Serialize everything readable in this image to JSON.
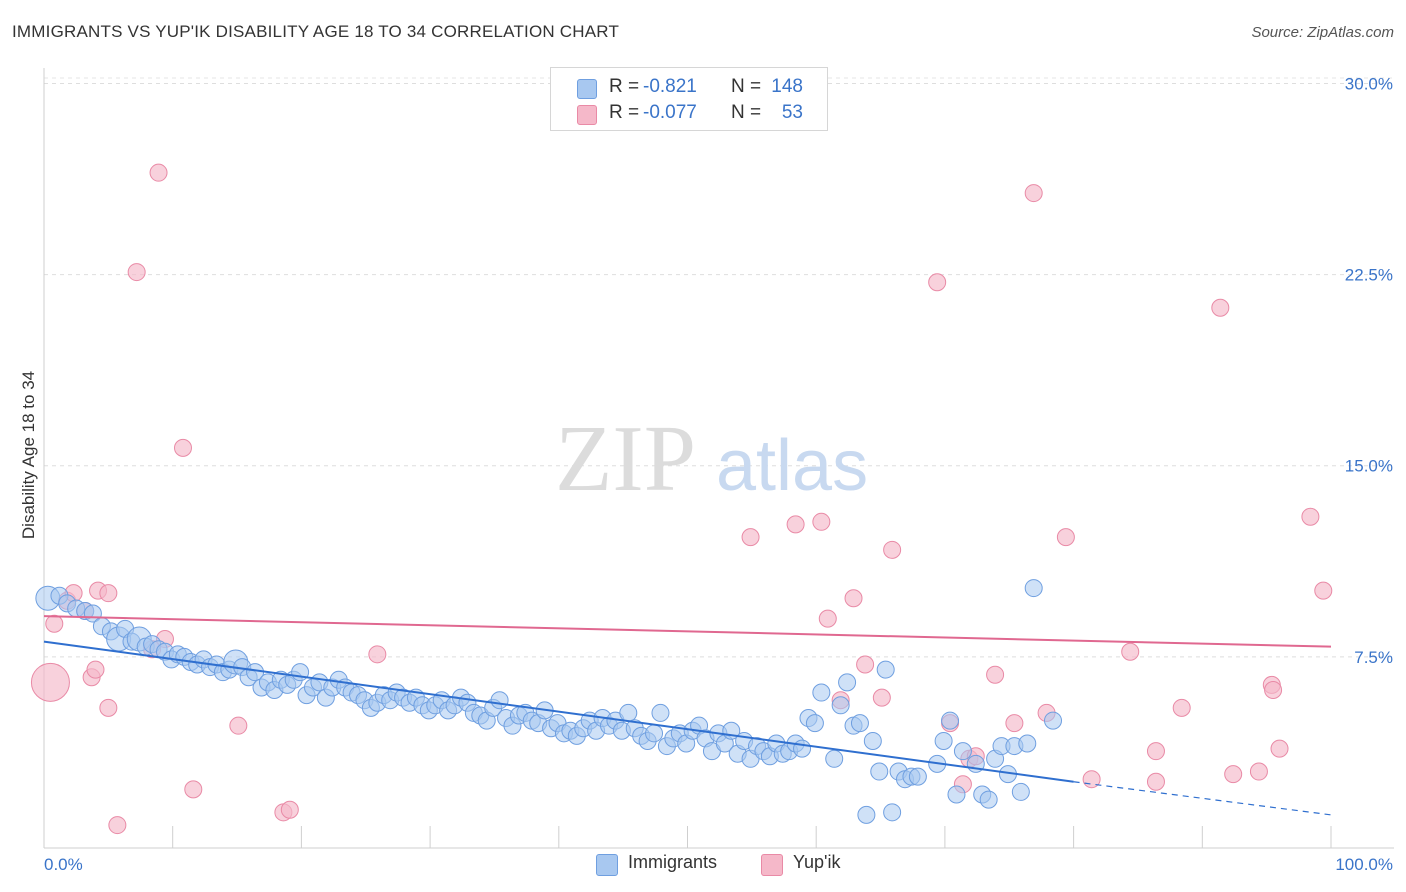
{
  "title": "IMMIGRANTS VS YUP'IK DISABILITY AGE 18 TO 34 CORRELATION CHART",
  "source": "Source: ZipAtlas.com",
  "watermark": {
    "zip": "ZIP",
    "atlas": "atlas"
  },
  "legend_top": [
    {
      "r_label": "R =",
      "r_value": "-0.821",
      "n_label": "N =",
      "n_value": "148",
      "color": "#a8c8f0"
    },
    {
      "r_label": "R =",
      "r_value": "-0.077",
      "n_label": "N =",
      "n_value": "53",
      "color": "#f5b8c9"
    }
  ],
  "legend_bottom": [
    {
      "label": "Immigrants",
      "color": "#a8c8f0"
    },
    {
      "label": "Yup'ik",
      "color": "#f5b8c9"
    }
  ],
  "chart_data": {
    "type": "scatter",
    "title": "IMMIGRANTS VS YUP'IK DISABILITY AGE 18 TO 34 CORRELATION CHART",
    "xlabel": "",
    "ylabel": "Disability Age 18 to 34",
    "xlim": [
      0,
      100
    ],
    "ylim": [
      0,
      31
    ],
    "x_tick_labels": [
      "0.0%",
      "100.0%"
    ],
    "y_ticks": [
      7.5,
      15.0,
      22.5,
      30.0
    ],
    "y_tick_labels": [
      "7.5%",
      "15.0%",
      "22.5%",
      "30.0%"
    ],
    "grid": "horizontal dashed",
    "series": [
      {
        "name": "Immigrants",
        "color": "#6f9fe0",
        "fill": "#a8c8f0",
        "trend": {
          "x0": 0,
          "y0": 8.1,
          "x1": 80,
          "y1": 2.6,
          "dash_to_x": 100,
          "dash_to_y": 1.3,
          "color": "#2f6fcf"
        },
        "points": [
          [
            0.3,
            9.8
          ],
          [
            1.2,
            9.9
          ],
          [
            1.8,
            9.6
          ],
          [
            2.5,
            9.4
          ],
          [
            3.2,
            9.3
          ],
          [
            3.8,
            9.2
          ],
          [
            4.5,
            8.7
          ],
          [
            5.2,
            8.5
          ],
          [
            5.8,
            8.2
          ],
          [
            6.3,
            8.6
          ],
          [
            6.8,
            8.1
          ],
          [
            7.4,
            8.2
          ],
          [
            7.9,
            7.9
          ],
          [
            8.4,
            8.0
          ],
          [
            8.9,
            7.8
          ],
          [
            9.4,
            7.7
          ],
          [
            9.9,
            7.4
          ],
          [
            10.4,
            7.6
          ],
          [
            10.9,
            7.5
          ],
          [
            11.4,
            7.3
          ],
          [
            11.9,
            7.2
          ],
          [
            12.4,
            7.4
          ],
          [
            12.9,
            7.1
          ],
          [
            13.4,
            7.2
          ],
          [
            13.9,
            6.9
          ],
          [
            14.4,
            7.0
          ],
          [
            14.9,
            7.3
          ],
          [
            15.4,
            7.1
          ],
          [
            15.9,
            6.7
          ],
          [
            16.4,
            6.9
          ],
          [
            16.9,
            6.3
          ],
          [
            17.4,
            6.5
          ],
          [
            17.9,
            6.2
          ],
          [
            18.4,
            6.6
          ],
          [
            18.9,
            6.4
          ],
          [
            19.4,
            6.6
          ],
          [
            19.9,
            6.9
          ],
          [
            20.4,
            6.0
          ],
          [
            20.9,
            6.3
          ],
          [
            21.4,
            6.5
          ],
          [
            21.9,
            5.9
          ],
          [
            22.4,
            6.3
          ],
          [
            22.9,
            6.6
          ],
          [
            23.4,
            6.3
          ],
          [
            23.9,
            6.1
          ],
          [
            24.4,
            6.0
          ],
          [
            24.9,
            5.8
          ],
          [
            25.4,
            5.5
          ],
          [
            25.9,
            5.7
          ],
          [
            26.4,
            6.0
          ],
          [
            26.9,
            5.8
          ],
          [
            27.4,
            6.1
          ],
          [
            27.9,
            5.9
          ],
          [
            28.4,
            5.7
          ],
          [
            28.9,
            5.9
          ],
          [
            29.4,
            5.6
          ],
          [
            29.9,
            5.4
          ],
          [
            30.4,
            5.6
          ],
          [
            30.9,
            5.8
          ],
          [
            31.4,
            5.4
          ],
          [
            31.9,
            5.6
          ],
          [
            32.4,
            5.9
          ],
          [
            32.9,
            5.7
          ],
          [
            33.4,
            5.3
          ],
          [
            33.9,
            5.2
          ],
          [
            34.4,
            5.0
          ],
          [
            34.9,
            5.5
          ],
          [
            35.4,
            5.8
          ],
          [
            35.9,
            5.1
          ],
          [
            36.4,
            4.8
          ],
          [
            36.9,
            5.2
          ],
          [
            37.4,
            5.3
          ],
          [
            37.9,
            5.0
          ],
          [
            38.4,
            4.9
          ],
          [
            38.9,
            5.4
          ],
          [
            39.4,
            4.7
          ],
          [
            39.9,
            4.9
          ],
          [
            40.4,
            4.5
          ],
          [
            40.9,
            4.6
          ],
          [
            41.4,
            4.4
          ],
          [
            41.9,
            4.7
          ],
          [
            42.4,
            5.0
          ],
          [
            42.9,
            4.6
          ],
          [
            43.4,
            5.1
          ],
          [
            43.9,
            4.8
          ],
          [
            44.4,
            5.0
          ],
          [
            44.9,
            4.6
          ],
          [
            45.4,
            5.3
          ],
          [
            45.9,
            4.7
          ],
          [
            46.4,
            4.4
          ],
          [
            46.9,
            4.2
          ],
          [
            47.4,
            4.5
          ],
          [
            47.9,
            5.3
          ],
          [
            48.4,
            4.0
          ],
          [
            48.9,
            4.3
          ],
          [
            49.4,
            4.5
          ],
          [
            49.9,
            4.1
          ],
          [
            50.4,
            4.6
          ],
          [
            50.9,
            4.8
          ],
          [
            51.4,
            4.3
          ],
          [
            51.9,
            3.8
          ],
          [
            52.4,
            4.5
          ],
          [
            52.9,
            4.1
          ],
          [
            53.4,
            4.6
          ],
          [
            53.9,
            3.7
          ],
          [
            54.4,
            4.2
          ],
          [
            54.9,
            3.5
          ],
          [
            55.4,
            4.0
          ],
          [
            55.9,
            3.8
          ],
          [
            56.4,
            3.6
          ],
          [
            56.9,
            4.1
          ],
          [
            57.4,
            3.7
          ],
          [
            57.9,
            3.8
          ],
          [
            58.4,
            4.1
          ],
          [
            58.9,
            3.9
          ],
          [
            59.4,
            5.1
          ],
          [
            59.9,
            4.9
          ],
          [
            60.4,
            6.1
          ],
          [
            61.4,
            3.5
          ],
          [
            61.9,
            5.6
          ],
          [
            62.4,
            6.5
          ],
          [
            62.9,
            4.8
          ],
          [
            63.4,
            4.9
          ],
          [
            63.9,
            1.3
          ],
          [
            64.4,
            4.2
          ],
          [
            64.9,
            3.0
          ],
          [
            65.4,
            7.0
          ],
          [
            65.9,
            1.4
          ],
          [
            66.4,
            3.0
          ],
          [
            66.9,
            2.7
          ],
          [
            67.4,
            2.8
          ],
          [
            67.9,
            2.8
          ],
          [
            69.4,
            3.3
          ],
          [
            69.9,
            4.2
          ],
          [
            70.4,
            5.0
          ],
          [
            70.9,
            2.1
          ],
          [
            71.4,
            3.8
          ],
          [
            72.4,
            3.3
          ],
          [
            72.9,
            2.1
          ],
          [
            73.4,
            1.9
          ],
          [
            73.9,
            3.5
          ],
          [
            74.4,
            4.0
          ],
          [
            74.9,
            2.9
          ],
          [
            75.4,
            4.0
          ],
          [
            75.9,
            2.2
          ],
          [
            76.4,
            4.1
          ],
          [
            76.9,
            10.2
          ],
          [
            78.4,
            5.0
          ]
        ],
        "large_points": [
          [
            0.3,
            9.8
          ],
          [
            5.8,
            8.2
          ],
          [
            7.4,
            8.2
          ],
          [
            14.9,
            7.3
          ]
        ]
      },
      {
        "name": "Yup'ik",
        "color": "#e98aa6",
        "fill": "#f5b8c9",
        "trend": {
          "x0": 0,
          "y0": 9.1,
          "x1": 100,
          "y1": 7.9,
          "color": "#e06890"
        },
        "points": [
          [
            0.5,
            6.5
          ],
          [
            0.8,
            8.8
          ],
          [
            1.8,
            9.7
          ],
          [
            2.3,
            10.0
          ],
          [
            3.2,
            9.3
          ],
          [
            3.7,
            6.7
          ],
          [
            4.0,
            7.0
          ],
          [
            4.2,
            10.1
          ],
          [
            5.0,
            10.0
          ],
          [
            5.0,
            5.5
          ],
          [
            5.7,
            0.9
          ],
          [
            7.2,
            22.6
          ],
          [
            8.9,
            26.5
          ],
          [
            8.4,
            7.8
          ],
          [
            9.4,
            8.2
          ],
          [
            10.8,
            15.7
          ],
          [
            11.6,
            2.3
          ],
          [
            15.1,
            4.8
          ],
          [
            18.6,
            1.4
          ],
          [
            19.1,
            1.5
          ],
          [
            25.9,
            7.6
          ],
          [
            54.9,
            12.2
          ],
          [
            58.4,
            12.7
          ],
          [
            60.4,
            12.8
          ],
          [
            60.9,
            9.0
          ],
          [
            61.9,
            5.8
          ],
          [
            62.9,
            9.8
          ],
          [
            63.8,
            7.2
          ],
          [
            65.1,
            5.9
          ],
          [
            65.9,
            11.7
          ],
          [
            69.4,
            22.2
          ],
          [
            70.4,
            4.9
          ],
          [
            71.4,
            2.5
          ],
          [
            71.9,
            3.5
          ],
          [
            72.4,
            3.6
          ],
          [
            73.9,
            6.8
          ],
          [
            75.4,
            4.9
          ],
          [
            76.9,
            25.7
          ],
          [
            77.9,
            5.3
          ],
          [
            79.4,
            12.2
          ],
          [
            81.4,
            2.7
          ],
          [
            84.4,
            7.7
          ],
          [
            86.4,
            3.8
          ],
          [
            86.4,
            2.6
          ],
          [
            88.4,
            5.5
          ],
          [
            91.4,
            21.2
          ],
          [
            92.4,
            2.9
          ],
          [
            94.4,
            3.0
          ],
          [
            95.4,
            6.4
          ],
          [
            95.5,
            6.2
          ],
          [
            96.0,
            3.9
          ],
          [
            98.4,
            13.0
          ],
          [
            99.4,
            10.1
          ]
        ],
        "large_points": [
          [
            0.5,
            6.5
          ]
        ]
      }
    ]
  }
}
